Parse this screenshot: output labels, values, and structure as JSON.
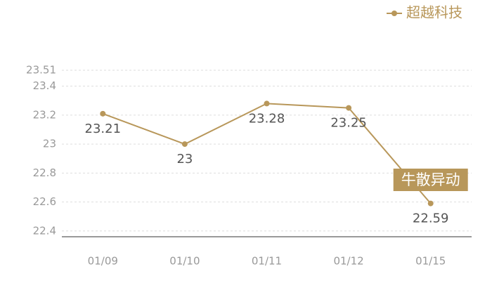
{
  "chart_data": {
    "type": "line",
    "categories": [
      "01/09",
      "01/10",
      "01/11",
      "01/12",
      "01/15"
    ],
    "series": [
      {
        "name": "超越科技",
        "color": "#b8975a",
        "values": [
          23.21,
          23,
          23.28,
          23.25,
          22.59
        ]
      }
    ],
    "ylim": [
      22.36,
      23.51
    ],
    "yticks": [
      22.4,
      22.6,
      22.8,
      23,
      23.2,
      23.4,
      23.51
    ],
    "grid": true,
    "legend": "top-right",
    "annotation": "牛散异动"
  }
}
